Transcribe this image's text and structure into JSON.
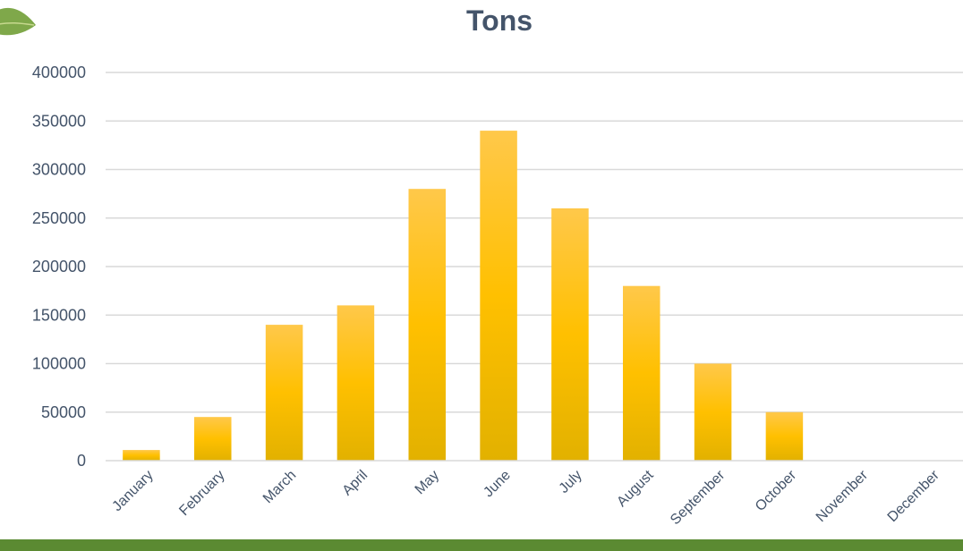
{
  "colors": {
    "bar_top": "#ffc84a",
    "bar_mid": "#ffc000",
    "bar_bottom": "#e2b100",
    "bottom_band": "#5b8a32",
    "leaf": "#7fa84a"
  },
  "icons": {
    "corner_decoration": "leaf-icon"
  },
  "chart_data": {
    "type": "bar",
    "title": "Tons",
    "xlabel": "",
    "ylabel": "",
    "categories": [
      "January",
      "February",
      "March",
      "April",
      "May",
      "June",
      "July",
      "August",
      "September",
      "October",
      "November",
      "December"
    ],
    "values": [
      11000,
      45000,
      140000,
      160000,
      280000,
      340000,
      260000,
      180000,
      100000,
      50000,
      0,
      0
    ],
    "ylim": [
      0,
      400000
    ],
    "yticks": [
      "0",
      "50000",
      "100000",
      "150000",
      "200000",
      "250000",
      "300000",
      "350000",
      "400000"
    ],
    "grid": true,
    "legend": "none"
  }
}
